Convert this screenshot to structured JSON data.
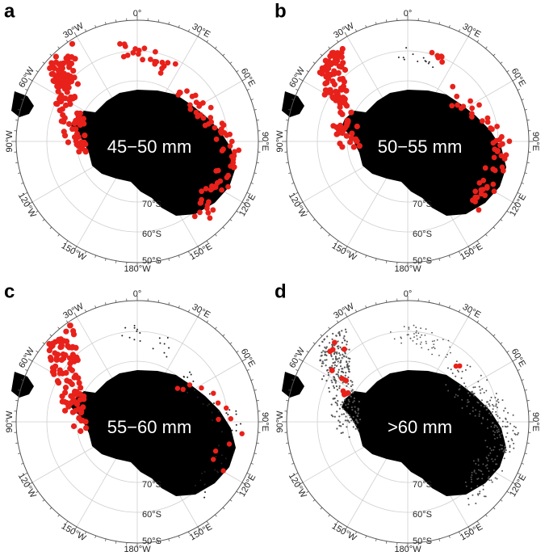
{
  "panels": [
    {
      "letter": "a",
      "label": "45−50 mm"
    },
    {
      "letter": "b",
      "label": "50−55 mm"
    },
    {
      "letter": "c",
      "label": "55−60 mm"
    },
    {
      "letter": "d",
      "label": ">60 mm"
    }
  ],
  "longitude_labels": [
    "0°",
    "30°E",
    "60°E",
    "90°E",
    "120°E",
    "150°E",
    "180°W",
    "150°W",
    "120°W",
    "90°W",
    "60°W",
    "30°W"
  ],
  "latitude_labels": [
    "70°S",
    "60°S",
    "50°S"
  ]
}
